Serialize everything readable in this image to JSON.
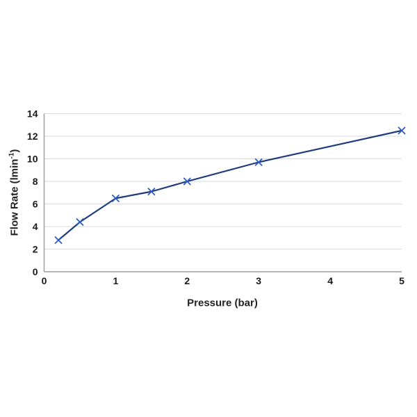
{
  "chart_data": {
    "type": "line",
    "title": "",
    "xlabel": "Pressure (bar)",
    "ylabel": "Flow Rate (lmin⁻¹)",
    "ylabel_parts": {
      "main": "Flow Rate (lmin",
      "sup": "-1",
      "close": ")"
    },
    "series": [
      {
        "name": "Flow Rate",
        "x": [
          0.2,
          0.5,
          1,
          1.5,
          2,
          3,
          5
        ],
        "y": [
          2.8,
          4.4,
          6.5,
          7.1,
          8.0,
          9.7,
          12.5
        ]
      }
    ],
    "xlim": [
      0,
      5
    ],
    "ylim": [
      0,
      14
    ],
    "x_ticks": [
      0,
      1,
      2,
      3,
      4,
      5
    ],
    "y_ticks": [
      0,
      2,
      4,
      6,
      8,
      10,
      12,
      14
    ],
    "grid": "horizontal",
    "legend": "none",
    "marker": "x",
    "colors": {
      "line": "#1f3d7c",
      "marker": "#2f5bbf",
      "gridline": "#d9d9d9",
      "axis": "#9b9b9b",
      "text": "#1a1a1a"
    }
  }
}
